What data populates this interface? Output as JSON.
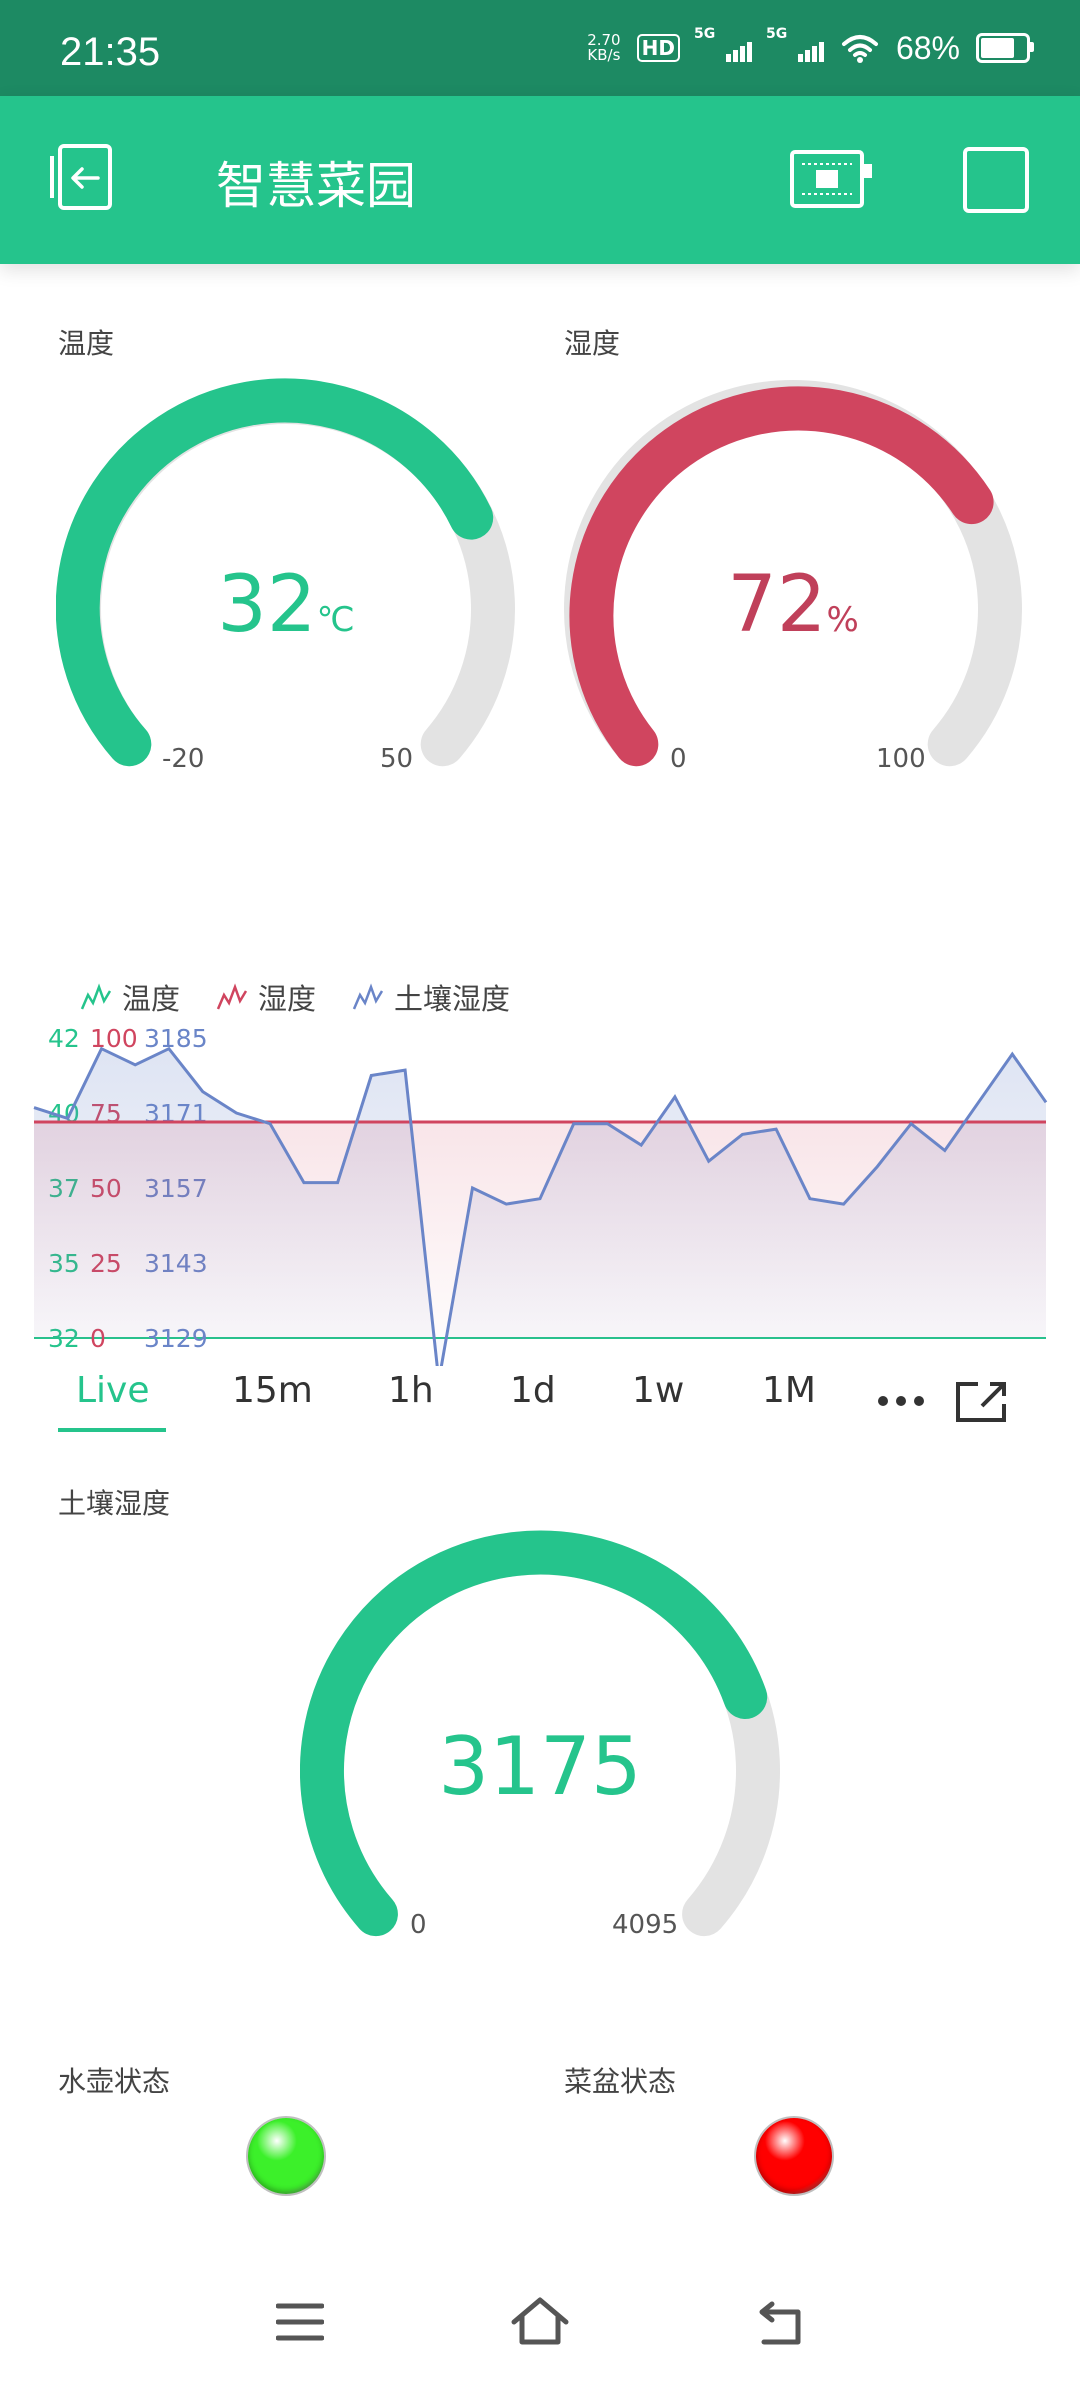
{
  "status_bar": {
    "time": "21:35",
    "net_speed_value": "2.70",
    "net_speed_unit": "KB/s",
    "hd_label": "HD",
    "sim1_label": "5G",
    "sim2_label": "5G",
    "battery": "68%"
  },
  "header": {
    "title": "智慧菜园"
  },
  "temperature_gauge": {
    "label": "温度",
    "value": "32",
    "unit": "℃",
    "min": "-20",
    "max": "50",
    "color": "#25c48c"
  },
  "humidity_gauge": {
    "label": "湿度",
    "value": "72",
    "unit": "%",
    "min": "0",
    "max": "100",
    "color": "#d0455f"
  },
  "chart_data": {
    "type": "line",
    "legend": [
      "温度",
      "湿度",
      "土壤湿度"
    ],
    "series": [
      {
        "name": "温度",
        "color": "#25c48c",
        "ylim": [
          32,
          42
        ],
        "ticks": [
          "42",
          "40",
          "37",
          "35",
          "32"
        ]
      },
      {
        "name": "湿度",
        "color": "#d0455f",
        "ylim": [
          0,
          100
        ],
        "ticks": [
          "100",
          "75",
          "50",
          "25",
          "0"
        ],
        "values": [
          72,
          72,
          72,
          72,
          72,
          72,
          72,
          72,
          72,
          72,
          72,
          72,
          72,
          72,
          72,
          72,
          72,
          72,
          72,
          72,
          72,
          72,
          72,
          72,
          72,
          72,
          72,
          72,
          72,
          72,
          72
        ]
      },
      {
        "name": "土壤湿度",
        "color": "#6a85c8",
        "ylim": [
          3129,
          3185
        ],
        "ticks": [
          "3185",
          "3171",
          "3157",
          "3143",
          "3129"
        ],
        "values": [
          3172,
          3170,
          3183,
          3180,
          3183,
          3175,
          3171,
          3169,
          3158,
          3158,
          3178,
          3179,
          3121,
          3157,
          3154,
          3155,
          3169,
          3169,
          3165,
          3174,
          3162,
          3167,
          3168,
          3155,
          3154,
          3161,
          3169,
          3164,
          3173,
          3182,
          3173
        ]
      }
    ]
  },
  "tabs": [
    "Live",
    "15m",
    "1h",
    "1d",
    "1w",
    "1M"
  ],
  "soil_gauge": {
    "label": "土壤湿度",
    "value": "3175",
    "min": "0",
    "max": "4095",
    "color": "#25c48c"
  },
  "kettle_status": {
    "label": "水壶状态",
    "color": "#3cf02a"
  },
  "pot_status": {
    "label": "菜盆状态",
    "color": "#ff0000"
  }
}
